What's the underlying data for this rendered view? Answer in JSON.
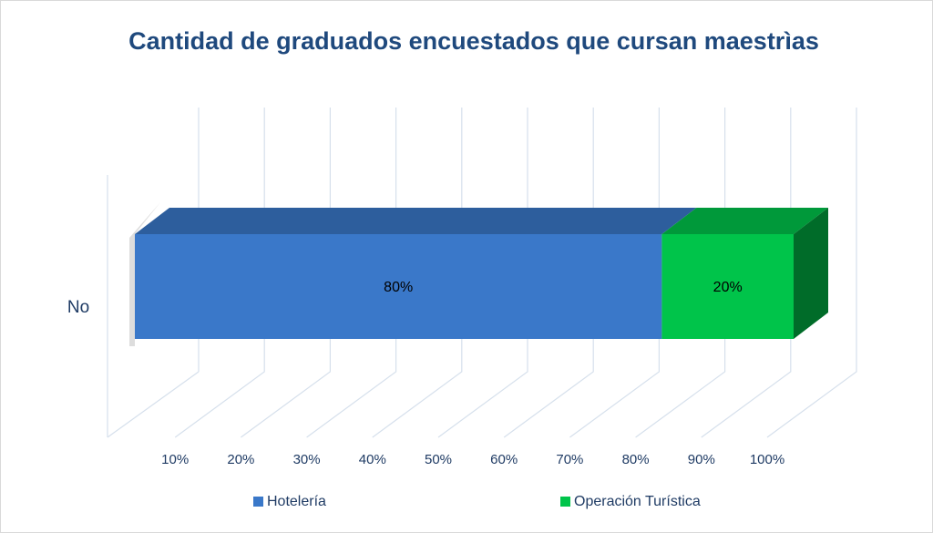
{
  "chart_data": {
    "type": "bar3d_stacked_horizontal",
    "title": "Cantidad de graduados encuestados que cursan maestrìas",
    "categories": [
      "No"
    ],
    "series": [
      {
        "name": "Hotelería",
        "color": "#3a78c9",
        "values": [
          80
        ],
        "value_labels": [
          "80%"
        ]
      },
      {
        "name": "Operación Turística",
        "color": "#00c44a",
        "values": [
          20
        ],
        "value_labels": [
          "20%"
        ]
      }
    ],
    "xlim": [
      0,
      100
    ],
    "xticks": [
      {
        "value": 10,
        "label": "10%"
      },
      {
        "value": 20,
        "label": "20%"
      },
      {
        "value": 30,
        "label": "30%"
      },
      {
        "value": 40,
        "label": "40%"
      },
      {
        "value": 50,
        "label": "50%"
      },
      {
        "value": 60,
        "label": "60%"
      },
      {
        "value": 70,
        "label": "70%"
      },
      {
        "value": 80,
        "label": "80%"
      },
      {
        "value": 90,
        "label": "90%"
      },
      {
        "value": 100,
        "label": "100%"
      }
    ],
    "grid": true,
    "legend": "bottom"
  }
}
